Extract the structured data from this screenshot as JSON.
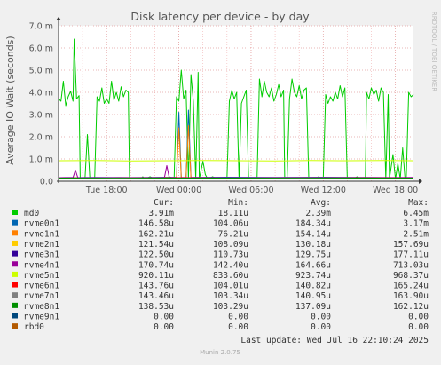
{
  "chart_data": {
    "type": "line",
    "title": "Disk latency per device - by day",
    "ylabel": "Average IO Wait (seconds)",
    "xlabel": "",
    "ylim": [
      0,
      0.007
    ],
    "y_ticks": [
      {
        "value": 0,
        "label": "0.0"
      },
      {
        "value": 0.001,
        "label": "1.0 m"
      },
      {
        "value": 0.002,
        "label": "2.0 m"
      },
      {
        "value": 0.003,
        "label": "3.0 m"
      },
      {
        "value": 0.004,
        "label": "4.0 m"
      },
      {
        "value": 0.005,
        "label": "5.0 m"
      },
      {
        "value": 0.006,
        "label": "6.0 m"
      },
      {
        "value": 0.007,
        "label": "7.0 m"
      }
    ],
    "xlim": [
      0,
      29.5
    ],
    "x_unit": "hours since start of the plotted period",
    "x_ticks": [
      {
        "value": 4,
        "label": "Tue 18:00"
      },
      {
        "value": 10,
        "label": "Wed 00:00"
      },
      {
        "value": 16,
        "label": "Wed 06:00"
      },
      {
        "value": 22,
        "label": "Wed 12:00"
      },
      {
        "value": 28,
        "label": "Wed 18:00"
      }
    ],
    "grid": true,
    "watermark": "RRDTOOL / TOBI OETIKER",
    "footer": "Munin 2.0.75",
    "last_update": "Last update: Wed Jul 16 22:10:24 2025",
    "legend_headers": [
      "Cur:",
      "Min:",
      "Avg:",
      "Max:"
    ],
    "series": [
      {
        "name": "md0",
        "color": "#00cc00",
        "cur": "3.91m",
        "min": "18.11u",
        "avg": "2.39m",
        "max": "6.45m",
        "points": [
          [
            0,
            0.00372
          ],
          [
            0.2,
            0.0036
          ],
          [
            0.4,
            0.0045
          ],
          [
            0.6,
            0.0034
          ],
          [
            0.8,
            0.0038
          ],
          [
            1.0,
            0.00405
          ],
          [
            1.2,
            0.0036
          ],
          [
            1.3,
            0.0064
          ],
          [
            1.5,
            0.0037
          ],
          [
            1.7,
            0.00385
          ],
          [
            1.8,
            0.00015
          ],
          [
            2.2,
            0.0001
          ],
          [
            2.4,
            0.0021
          ],
          [
            2.6,
            0.0001
          ],
          [
            3.0,
            0.00012
          ],
          [
            3.2,
            0.0038
          ],
          [
            3.4,
            0.0036
          ],
          [
            3.6,
            0.0042
          ],
          [
            3.8,
            0.0035
          ],
          [
            4.0,
            0.0037
          ],
          [
            4.2,
            0.0035
          ],
          [
            4.4,
            0.0045
          ],
          [
            4.6,
            0.00365
          ],
          [
            4.8,
            0.004
          ],
          [
            5.0,
            0.0036
          ],
          [
            5.2,
            0.00425
          ],
          [
            5.4,
            0.0038
          ],
          [
            5.6,
            0.0041
          ],
          [
            5.8,
            0.004
          ],
          [
            5.9,
            0.0001
          ],
          [
            6.8,
            0.0001
          ],
          [
            7.0,
            0.0002
          ],
          [
            7.2,
            0.0001
          ],
          [
            7.6,
            0.0002
          ],
          [
            8.0,
            0.0001
          ],
          [
            8.4,
            0.00015
          ],
          [
            8.8,
            0.0001
          ],
          [
            9.2,
            0.0002
          ],
          [
            9.6,
            0.0001
          ],
          [
            9.8,
            0.0038
          ],
          [
            10.0,
            0.0036
          ],
          [
            10.2,
            0.005
          ],
          [
            10.4,
            0.0037
          ],
          [
            10.6,
            0.0041
          ],
          [
            10.8,
            0.0001
          ],
          [
            11.0,
            0.0048
          ],
          [
            11.2,
            0.0036
          ],
          [
            11.4,
            0.0001
          ],
          [
            11.6,
            0.0049
          ],
          [
            11.7,
            0.0001
          ],
          [
            12.0,
            0.0009
          ],
          [
            12.2,
            0.0003
          ],
          [
            12.4,
            0.0001
          ],
          [
            12.8,
            0.0002
          ],
          [
            13.2,
            0.0001
          ],
          [
            13.6,
            0.00015
          ],
          [
            14.0,
            0.0001
          ],
          [
            14.2,
            0.0036
          ],
          [
            14.4,
            0.0041
          ],
          [
            14.6,
            0.0037
          ],
          [
            14.8,
            0.004
          ],
          [
            15.0,
            0.0001
          ],
          [
            15.2,
            0.0035
          ],
          [
            15.4,
            0.0038
          ],
          [
            15.6,
            0.0041
          ],
          [
            15.8,
            0.0001
          ],
          [
            16.2,
            0.0001
          ],
          [
            16.5,
            0.0001
          ],
          [
            16.7,
            0.0046
          ],
          [
            16.9,
            0.0038
          ],
          [
            17.1,
            0.0045
          ],
          [
            17.3,
            0.004
          ],
          [
            17.5,
            0.0038
          ],
          [
            17.7,
            0.0042
          ],
          [
            17.9,
            0.0036
          ],
          [
            18.1,
            0.0039
          ],
          [
            18.3,
            0.00435
          ],
          [
            18.5,
            0.0038
          ],
          [
            18.7,
            0.0041
          ],
          [
            18.8,
            0.0001
          ],
          [
            19.0,
            0.0001
          ],
          [
            19.2,
            0.0037
          ],
          [
            19.4,
            0.0046
          ],
          [
            19.6,
            0.004
          ],
          [
            19.8,
            0.0038
          ],
          [
            20.0,
            0.0043
          ],
          [
            20.2,
            0.0037
          ],
          [
            20.4,
            0.0041
          ],
          [
            20.6,
            0.0042
          ],
          [
            20.8,
            0.0001
          ],
          [
            21.4,
            0.0001
          ],
          [
            21.6,
            0.0002
          ],
          [
            22.0,
            0.0001
          ],
          [
            22.2,
            0.0039
          ],
          [
            22.4,
            0.0035
          ],
          [
            22.6,
            0.0038
          ],
          [
            22.8,
            0.0036
          ],
          [
            23.0,
            0.004
          ],
          [
            23.2,
            0.0037
          ],
          [
            23.4,
            0.0043
          ],
          [
            23.6,
            0.0038
          ],
          [
            23.8,
            0.0042
          ],
          [
            24.0,
            0.0001
          ],
          [
            24.5,
            0.0001
          ],
          [
            24.8,
            0.0002
          ],
          [
            25.2,
            0.0001
          ],
          [
            25.5,
            0.0001
          ],
          [
            25.6,
            0.004
          ],
          [
            25.8,
            0.0037
          ],
          [
            26.0,
            0.0042
          ],
          [
            26.2,
            0.0039
          ],
          [
            26.4,
            0.0041
          ],
          [
            26.6,
            0.0036
          ],
          [
            26.8,
            0.0042
          ],
          [
            27.0,
            0.004
          ],
          [
            27.2,
            0.0001
          ],
          [
            27.4,
            0.0039
          ],
          [
            27.5,
            0.0001
          ],
          [
            27.8,
            0.0012
          ],
          [
            28.0,
            0.0001
          ],
          [
            28.2,
            0.0008
          ],
          [
            28.4,
            0.0001
          ],
          [
            28.6,
            0.0015
          ],
          [
            28.8,
            0.0001
          ],
          [
            28.9,
            0.0002
          ],
          [
            29.1,
            0.004
          ],
          [
            29.3,
            0.0038
          ],
          [
            29.5,
            0.0039
          ]
        ]
      },
      {
        "name": "nvme0n1",
        "color": "#0066b3",
        "cur": "146.58u",
        "min": "104.06u",
        "avg": "184.34u",
        "max": "3.17m",
        "points": [
          [
            0,
            0.00016
          ],
          [
            3,
            0.00017
          ],
          [
            6,
            0.00016
          ],
          [
            9,
            0.00018
          ],
          [
            9.8,
            0.00017
          ],
          [
            10.0,
            0.0031
          ],
          [
            10.2,
            0.00017
          ],
          [
            10.6,
            0.00016
          ],
          [
            10.8,
            0.0032
          ],
          [
            11.0,
            0.00017
          ],
          [
            14,
            0.00018
          ],
          [
            18,
            0.00017
          ],
          [
            22,
            0.00018
          ],
          [
            26,
            0.00017
          ],
          [
            29.5,
            0.00015
          ]
        ]
      },
      {
        "name": "nvme1n1",
        "color": "#ff8000",
        "cur": "162.21u",
        "min": "76.21u",
        "avg": "154.14u",
        "max": "2.51m",
        "points": [
          [
            0,
            0.00015
          ],
          [
            3,
            0.00016
          ],
          [
            6,
            0.00015
          ],
          [
            9,
            0.00016
          ],
          [
            9.8,
            0.00016
          ],
          [
            10.0,
            0.0024
          ],
          [
            10.2,
            0.00016
          ],
          [
            10.6,
            0.00016
          ],
          [
            10.8,
            0.0025
          ],
          [
            11.0,
            0.00015
          ],
          [
            14,
            0.00016
          ],
          [
            18,
            0.00015
          ],
          [
            22,
            0.00016
          ],
          [
            26,
            0.00015
          ],
          [
            29.5,
            0.00016
          ]
        ]
      },
      {
        "name": "nvme2n1",
        "color": "#ffcc00",
        "cur": "121.54u",
        "min": "108.09u",
        "avg": "130.18u",
        "max": "157.69u",
        "points": [
          [
            0,
            0.00013
          ],
          [
            5,
            0.00013
          ],
          [
            10,
            0.00014
          ],
          [
            15,
            0.00013
          ],
          [
            20,
            0.00013
          ],
          [
            25,
            0.00014
          ],
          [
            29.5,
            0.00012
          ]
        ]
      },
      {
        "name": "nvme3n1",
        "color": "#330099",
        "cur": "122.50u",
        "min": "110.73u",
        "avg": "129.75u",
        "max": "177.11u",
        "points": [
          [
            0,
            0.00013
          ],
          [
            5,
            0.00012
          ],
          [
            10,
            0.00013
          ],
          [
            15,
            0.00013
          ],
          [
            20,
            0.00012
          ],
          [
            25,
            0.00013
          ],
          [
            29.5,
            0.00012
          ]
        ]
      },
      {
        "name": "nvme4n1",
        "color": "#990099",
        "cur": "170.74u",
        "min": "142.40u",
        "avg": "164.66u",
        "max": "713.03u",
        "points": [
          [
            0,
            0.00016
          ],
          [
            1.2,
            0.00017
          ],
          [
            1.4,
            0.0005
          ],
          [
            1.6,
            0.00016
          ],
          [
            5,
            0.00017
          ],
          [
            8.8,
            0.00016
          ],
          [
            9.0,
            0.0007
          ],
          [
            9.2,
            0.00017
          ],
          [
            15,
            0.00016
          ],
          [
            20,
            0.00017
          ],
          [
            25,
            0.00016
          ],
          [
            29.5,
            0.00017
          ]
        ]
      },
      {
        "name": "nvme5n1",
        "color": "#ccff00",
        "cur": "920.11u",
        "min": "833.60u",
        "avg": "923.74u",
        "max": "968.37u",
        "points": [
          [
            0,
            0.00092
          ],
          [
            3,
            0.00093
          ],
          [
            6,
            0.00091
          ],
          [
            9,
            0.00092
          ],
          [
            12,
            0.00093
          ],
          [
            15,
            0.00092
          ],
          [
            18,
            0.00091
          ],
          [
            21,
            0.00093
          ],
          [
            24,
            0.00092
          ],
          [
            27,
            0.00093
          ],
          [
            29.5,
            0.00092
          ]
        ]
      },
      {
        "name": "nvme6n1",
        "color": "#ff0000",
        "cur": "143.76u",
        "min": "104.01u",
        "avg": "140.82u",
        "max": "165.24u",
        "points": [
          [
            0,
            0.00014
          ],
          [
            5,
            0.00014
          ],
          [
            10,
            0.00015
          ],
          [
            15,
            0.00014
          ],
          [
            20,
            0.00014
          ],
          [
            25,
            0.00015
          ],
          [
            29.5,
            0.00014
          ]
        ]
      },
      {
        "name": "nvme7n1",
        "color": "#808080",
        "cur": "143.46u",
        "min": "103.34u",
        "avg": "140.95u",
        "max": "163.90u",
        "points": [
          [
            0,
            0.00014
          ],
          [
            5,
            0.00015
          ],
          [
            10,
            0.00014
          ],
          [
            15,
            0.00014
          ],
          [
            20,
            0.00015
          ],
          [
            25,
            0.00014
          ],
          [
            29.5,
            0.00014
          ]
        ]
      },
      {
        "name": "nvme8n1",
        "color": "#008f00",
        "cur": "138.53u",
        "min": "103.29u",
        "avg": "137.09u",
        "max": "162.12u",
        "points": [
          [
            0,
            0.00014
          ],
          [
            5,
            0.00013
          ],
          [
            10,
            0.00014
          ],
          [
            15,
            0.00014
          ],
          [
            20,
            0.00013
          ],
          [
            25,
            0.00014
          ],
          [
            29.5,
            0.00014
          ]
        ]
      },
      {
        "name": "nvme9n1",
        "color": "#00487d",
        "cur": "0.00",
        "min": "0.00",
        "avg": "0.00",
        "max": "0.00",
        "points": [
          [
            0,
            0
          ],
          [
            29.5,
            0
          ]
        ]
      },
      {
        "name": "rbd0",
        "color": "#b35a00",
        "cur": "0.00",
        "min": "0.00",
        "avg": "0.00",
        "max": "0.00",
        "points": [
          [
            0,
            0
          ],
          [
            29.5,
            0
          ]
        ]
      }
    ]
  }
}
